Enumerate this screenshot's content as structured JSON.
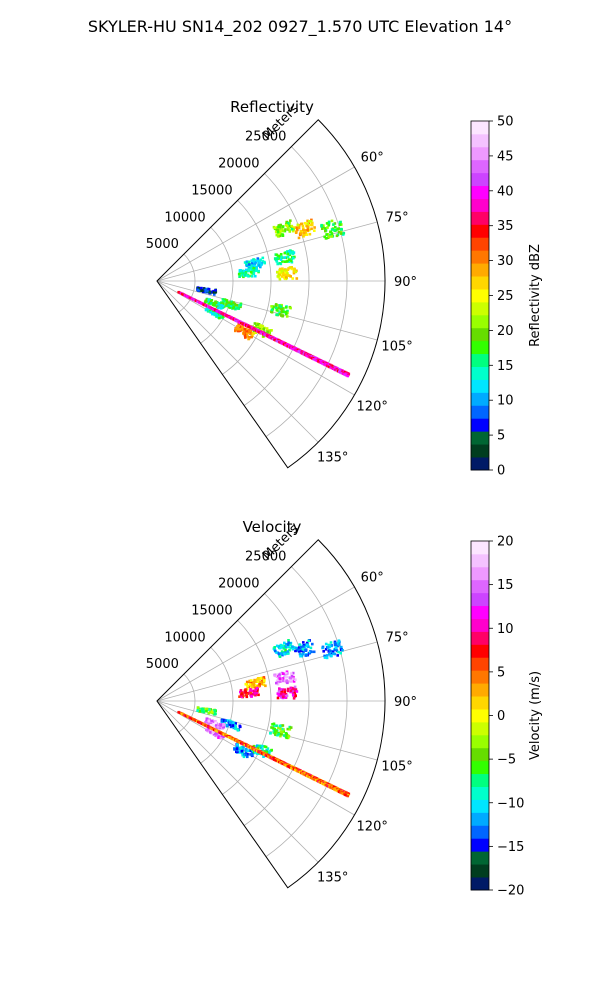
{
  "figure": {
    "suptitle": "SKYLER-HU  SN14_202  0927_1.570 UTC Elevation 14°"
  },
  "chart_data": [
    {
      "type": "heatmap",
      "projection": "polar-sector",
      "title": "Reflectivity",
      "radial_label": "Meters",
      "radial_ticks": [
        5000,
        10000,
        15000,
        20000,
        25000
      ],
      "radial_tick_labels": [
        "5000",
        "10000",
        "15000",
        "20000",
        "25000"
      ],
      "rmax": 30000,
      "azimuth_range_deg": [
        45,
        145
      ],
      "azimuth_ticks_deg": [
        60,
        75,
        90,
        105,
        120,
        135
      ],
      "azimuth_tick_labels": [
        "60°",
        "75°",
        "90°",
        "105°",
        "120°",
        "135°"
      ],
      "grid": true,
      "colorbar": {
        "label": "Reflectivity dBZ",
        "range": [
          0,
          50
        ],
        "ticks": [
          0,
          5,
          10,
          15,
          20,
          25,
          30,
          35,
          40,
          45,
          50
        ],
        "tick_labels": [
          "0",
          "5",
          "10",
          "15",
          "20",
          "25",
          "30",
          "35",
          "40",
          "45",
          "50"
        ],
        "colors": [
          "#001a66",
          "#003d1f",
          "#006633",
          "#0000ff",
          "#0066ff",
          "#00aaff",
          "#00e5ff",
          "#00ffcc",
          "#00ff80",
          "#33ff00",
          "#66dd00",
          "#99ff00",
          "#ccff00",
          "#ffff00",
          "#ffd700",
          "#ffaa00",
          "#ff7700",
          "#ff4400",
          "#ff0000",
          "#ff0066",
          "#ff00cc",
          "#ff00ff",
          "#cc44ff",
          "#dd66ff",
          "#ee99ff",
          "#f4c2ff",
          "#fce6ff"
        ]
      },
      "echoes": [
        {
          "az": 70,
          "r": 20500,
          "value": 27
        },
        {
          "az": 73,
          "r": 24000,
          "value": 18
        },
        {
          "az": 67,
          "r": 18000,
          "value": 20
        },
        {
          "az": 79,
          "r": 17000,
          "value": 15
        },
        {
          "az": 79,
          "r": 13000,
          "value": 12
        },
        {
          "az": 86,
          "r": 17000,
          "value": 26
        },
        {
          "az": 84,
          "r": 12000,
          "value": 15
        },
        {
          "az": 100,
          "r": 6500,
          "value": 6
        },
        {
          "az": 107,
          "r": 10000,
          "value": 17
        },
        {
          "az": 111,
          "r": 8000,
          "value": 16
        },
        {
          "az": 118,
          "r": 8500,
          "value": 15
        },
        {
          "az": 120,
          "r": 13000,
          "value": 30
        },
        {
          "az": 115,
          "r": 15000,
          "value": 21
        },
        {
          "az": 103,
          "r": 16500,
          "value": 18
        }
      ],
      "strong_radial": {
        "az": 116,
        "r_start": 3000,
        "r_end": 28000,
        "value": 38
      }
    },
    {
      "type": "heatmap",
      "projection": "polar-sector",
      "title": "Velocity",
      "radial_label": "Meters",
      "radial_ticks": [
        5000,
        10000,
        15000,
        20000,
        25000
      ],
      "radial_tick_labels": [
        "5000",
        "10000",
        "15000",
        "20000",
        "25000"
      ],
      "rmax": 30000,
      "azimuth_range_deg": [
        45,
        145
      ],
      "azimuth_ticks_deg": [
        60,
        75,
        90,
        105,
        120,
        135
      ],
      "azimuth_tick_labels": [
        "60°",
        "75°",
        "90°",
        "105°",
        "120°",
        "135°"
      ],
      "grid": true,
      "colorbar": {
        "label": "Velocity (m/s)",
        "range": [
          -20,
          20
        ],
        "ticks": [
          -20,
          -15,
          -10,
          -5,
          0,
          5,
          10,
          15,
          20
        ],
        "tick_labels": [
          "−20",
          "−15",
          "−10",
          "−5",
          "0",
          "5",
          "10",
          "15",
          "20"
        ],
        "colors": [
          "#001a66",
          "#003d1f",
          "#006633",
          "#0000ff",
          "#0066ff",
          "#00aaff",
          "#00e5ff",
          "#00ffcc",
          "#00ff80",
          "#33ff00",
          "#66dd00",
          "#99ff00",
          "#ccff00",
          "#ffff00",
          "#ffd700",
          "#ffaa00",
          "#ff7700",
          "#ff4400",
          "#ff0000",
          "#ff0066",
          "#ff00cc",
          "#ff00ff",
          "#cc44ff",
          "#dd66ff",
          "#ee99ff",
          "#f4c2ff",
          "#fce6ff"
        ]
      },
      "echoes": [
        {
          "az": 70,
          "r": 20500,
          "value": -12
        },
        {
          "az": 73,
          "r": 24000,
          "value": -12
        },
        {
          "az": 67,
          "r": 18000,
          "value": -10
        },
        {
          "az": 79,
          "r": 17000,
          "value": 15
        },
        {
          "az": 79,
          "r": 13000,
          "value": 3
        },
        {
          "az": 86,
          "r": 17000,
          "value": 11
        },
        {
          "az": 84,
          "r": 12000,
          "value": 9
        },
        {
          "az": 100,
          "r": 6500,
          "value": -5
        },
        {
          "az": 107,
          "r": 10000,
          "value": -12
        },
        {
          "az": 111,
          "r": 8000,
          "value": 16
        },
        {
          "az": 118,
          "r": 8500,
          "value": 15
        },
        {
          "az": 120,
          "r": 13000,
          "value": -12
        },
        {
          "az": 115,
          "r": 15000,
          "value": -8
        },
        {
          "az": 103,
          "r": 16500,
          "value": -6
        }
      ],
      "strong_radial": {
        "az": 116,
        "r_start": 3000,
        "r_end": 28000,
        "value": 5
      }
    }
  ]
}
